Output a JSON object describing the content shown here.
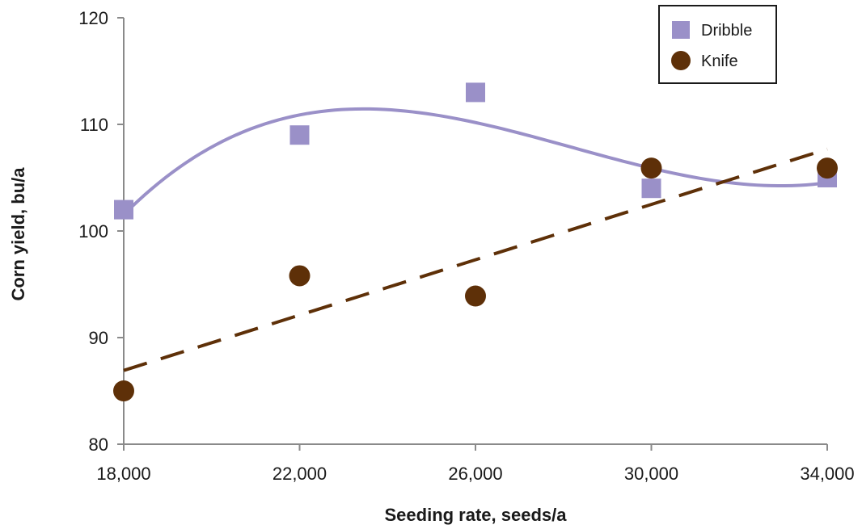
{
  "chart_data": {
    "type": "scatter",
    "xlabel": "Seeding rate, seeds/a",
    "ylabel": "Corn yield, bu/a",
    "xlim": [
      18000,
      34000
    ],
    "ylim": [
      80,
      120
    ],
    "x_ticks": [
      18000,
      22000,
      26000,
      30000,
      34000
    ],
    "x_tick_labels": [
      "18,000",
      "22,000",
      "26,000",
      "30,000",
      "34,000"
    ],
    "y_ticks": [
      80,
      90,
      100,
      110,
      120
    ],
    "y_tick_labels": [
      "80",
      "90",
      "100",
      "110",
      "120"
    ],
    "grid": false,
    "legend_position": "top-right",
    "series": [
      {
        "name": "Dribble",
        "marker": "square",
        "color": "#9a90c8",
        "x": [
          18000,
          22000,
          26000,
          30000,
          34000
        ],
        "y": [
          102,
          109,
          113,
          104,
          105
        ],
        "trendline": {
          "type": "polynomial",
          "style": "solid"
        }
      },
      {
        "name": "Knife",
        "marker": "circle",
        "color": "#5e3008",
        "x": [
          18000,
          22000,
          26000,
          30000,
          34000
        ],
        "y": [
          85,
          95.8,
          93.9,
          105.9,
          105.9
        ],
        "trendline": {
          "type": "linear",
          "style": "dashed"
        }
      }
    ]
  }
}
